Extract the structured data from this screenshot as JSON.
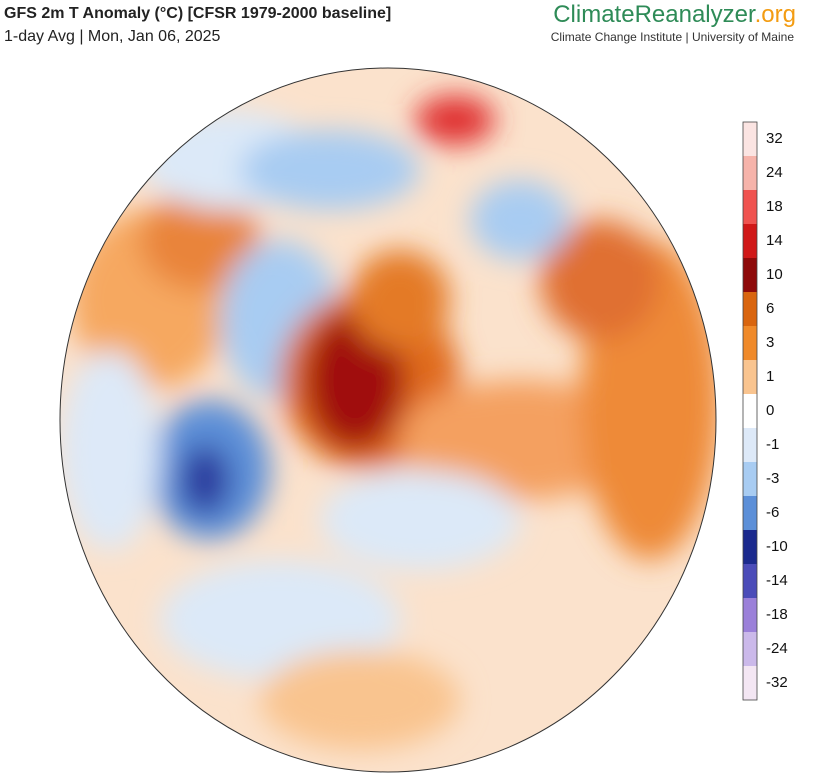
{
  "header": {
    "title": "GFS 2m T Anomaly (°C) [CFSR 1979-2000 baseline]",
    "subtitle": "1-day Avg | Mon, Jan 06, 2025"
  },
  "brand": {
    "name": "ClimateReanalyzer",
    "suffix": ".org",
    "tagline": "Climate Change Institute | University of Maine"
  },
  "legend": {
    "ticks": [
      32,
      24,
      18,
      14,
      10,
      6,
      3,
      1,
      0,
      -1,
      -3,
      -6,
      -10,
      -14,
      -18,
      -24,
      -32
    ],
    "colors": [
      "#fbe4e2",
      "#f6b3aa",
      "#ef5350",
      "#d01818",
      "#8e0a0a",
      "#d9650f",
      "#f08a2a",
      "#f9c48f",
      "#ffffff",
      "#dde9f8",
      "#a8ccf2",
      "#5c8fd8",
      "#1b2a8e",
      "#4b4cb9",
      "#9b80d9",
      "#cbb9ea",
      "#f3e6f3"
    ]
  }
}
